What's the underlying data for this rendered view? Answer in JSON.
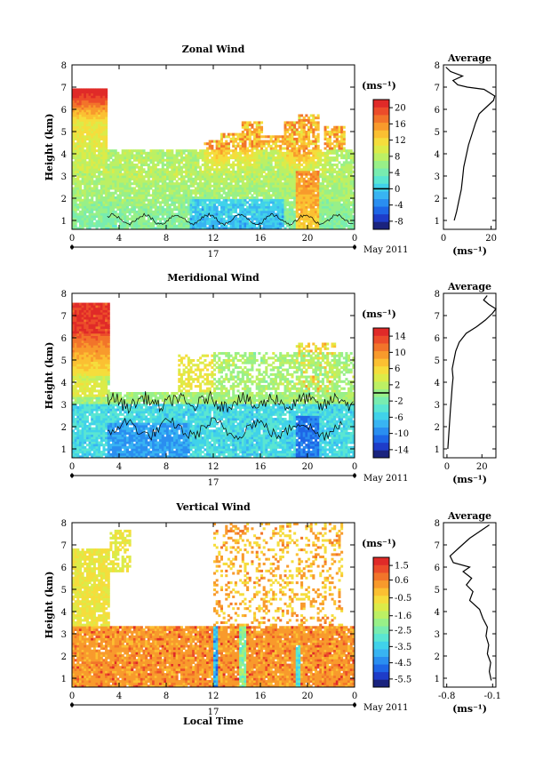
{
  "chart_data": [
    {
      "type": "heatmap",
      "title": "Zonal Wind",
      "ylabel": "Height (km)",
      "xlabel": "",
      "xticks": [
        "0",
        "4",
        "8",
        "12",
        "16",
        "20",
        "0"
      ],
      "xlim": [
        0,
        24
      ],
      "yticks": [
        "1",
        "2",
        "3",
        "4",
        "5",
        "6",
        "7",
        "8"
      ],
      "ylim": [
        0.6,
        8.0
      ],
      "date_day_label": "17",
      "date_month_label": "May 2011",
      "colorbar": {
        "unit": "(ms⁻¹)",
        "ticks": [
          "20",
          "16",
          "12",
          "8",
          "4",
          "0",
          "-4",
          "-8"
        ],
        "range": [
          -10,
          22
        ],
        "contour_level": 0,
        "colors": [
          "#1a237e",
          "#1e3cc8",
          "#1e66e6",
          "#2a8ef0",
          "#38b4f2",
          "#40d2ea",
          "#5ae6d2",
          "#78ecb0",
          "#98f088",
          "#bcf064",
          "#dceb48",
          "#f5dd3c",
          "#fbc032",
          "#f89a2c",
          "#f2742a",
          "#ec4c2a",
          "#e02a28"
        ]
      },
      "profile": {
        "title": "Average",
        "unit": "(ms⁻¹)",
        "xticks": [
          "0",
          "20"
        ],
        "xlim": [
          0,
          22
        ],
        "yticks": [
          "1",
          "2",
          "3",
          "4",
          "5",
          "6",
          "7",
          "8"
        ],
        "ylim": [
          0.6,
          8.0
        ],
        "points": [
          [
            4.5,
            1.0
          ],
          [
            5.5,
            1.4
          ],
          [
            6.5,
            1.9
          ],
          [
            7.5,
            2.4
          ],
          [
            8.0,
            2.9
          ],
          [
            8.5,
            3.4
          ],
          [
            9.5,
            3.9
          ],
          [
            10.5,
            4.4
          ],
          [
            12,
            4.9
          ],
          [
            13.5,
            5.4
          ],
          [
            15,
            5.8
          ],
          [
            18,
            6.1
          ],
          [
            21,
            6.4
          ],
          [
            21.5,
            6.6
          ],
          [
            17,
            6.9
          ],
          [
            10,
            7.0
          ],
          [
            6,
            7.1
          ],
          [
            4,
            7.3
          ],
          [
            8,
            7.5
          ],
          [
            3,
            7.7
          ],
          [
            1,
            7.9
          ]
        ]
      }
    },
    {
      "type": "heatmap",
      "title": "Meridional Wind",
      "ylabel": "Height (km)",
      "xlabel": "",
      "xticks": [
        "0",
        "4",
        "8",
        "12",
        "16",
        "20",
        "0"
      ],
      "xlim": [
        0,
        24
      ],
      "yticks": [
        "1",
        "2",
        "3",
        "4",
        "5",
        "6",
        "7",
        "8"
      ],
      "ylim": [
        0.6,
        8.0
      ],
      "date_day_label": "17",
      "date_month_label": "May 2011",
      "colorbar": {
        "unit": "(ms⁻¹)",
        "ticks": [
          "14",
          "10",
          "6",
          "2",
          "-2",
          "-6",
          "-10",
          "-14"
        ],
        "range": [
          -16,
          16
        ],
        "contour_level": 0,
        "colors": [
          "#1a237e",
          "#1e3cc8",
          "#1e66e6",
          "#2a8ef0",
          "#38b4f2",
          "#40d2ea",
          "#5ae6d2",
          "#78ecb0",
          "#98f088",
          "#bcf064",
          "#dceb48",
          "#f5dd3c",
          "#fbc032",
          "#f89a2c",
          "#f2742a",
          "#ec4c2a",
          "#e02a28"
        ]
      },
      "profile": {
        "title": "Average",
        "unit": "(ms⁻¹)",
        "xticks": [
          "0",
          "20"
        ],
        "xlim": [
          -2,
          28
        ],
        "yticks": [
          "1",
          "2",
          "3",
          "4",
          "5",
          "6",
          "7",
          "8"
        ],
        "ylim": [
          0.6,
          8.0
        ],
        "points": [
          [
            0.5,
            1.0
          ],
          [
            1,
            1.6
          ],
          [
            1.5,
            2.2
          ],
          [
            2,
            2.8
          ],
          [
            2.5,
            3.3
          ],
          [
            3,
            3.8
          ],
          [
            3.5,
            4.2
          ],
          [
            3,
            4.6
          ],
          [
            4,
            5.0
          ],
          [
            5,
            5.4
          ],
          [
            7,
            5.8
          ],
          [
            11,
            6.2
          ],
          [
            17,
            6.5
          ],
          [
            22,
            6.8
          ],
          [
            26,
            7.1
          ],
          [
            28,
            7.3
          ],
          [
            24,
            7.5
          ],
          [
            21,
            7.7
          ],
          [
            23,
            7.9
          ]
        ]
      }
    },
    {
      "type": "heatmap",
      "title": "Vertical Wind",
      "ylabel": "Height (km)",
      "xlabel": "Local Time",
      "xticks": [
        "0",
        "4",
        "8",
        "12",
        "16",
        "20",
        "0"
      ],
      "xlim": [
        0,
        24
      ],
      "yticks": [
        "1",
        "2",
        "3",
        "4",
        "5",
        "6",
        "7",
        "8"
      ],
      "ylim": [
        0.6,
        8.0
      ],
      "date_day_label": "17",
      "date_month_label": "May 2011",
      "colorbar": {
        "unit": "(ms⁻¹)",
        "ticks": [
          "1.5",
          "0.6",
          "-0.5",
          "-1.6",
          "-2.5",
          "-3.5",
          "-4.5",
          "-5.5"
        ],
        "range": [
          -6.0,
          2.0
        ],
        "colors": [
          "#1a237e",
          "#1e3cc8",
          "#1e66e6",
          "#2a8ef0",
          "#38b4f2",
          "#40d2ea",
          "#5ae6d2",
          "#78ecb0",
          "#98f088",
          "#bcf064",
          "#dceb48",
          "#f5dd3c",
          "#fbc032",
          "#f89a2c",
          "#f2742a",
          "#ec4c2a",
          "#e02a28"
        ]
      },
      "profile": {
        "title": "Average",
        "unit": "(ms⁻¹)",
        "xticks": [
          "-0.8",
          "-0.1"
        ],
        "xlim": [
          -0.85,
          -0.05
        ],
        "yticks": [
          "1",
          "2",
          "3",
          "4",
          "5",
          "6",
          "7",
          "8"
        ],
        "ylim": [
          0.6,
          8.0
        ],
        "points": [
          [
            -0.12,
            0.9
          ],
          [
            -0.15,
            1.3
          ],
          [
            -0.13,
            1.7
          ],
          [
            -0.18,
            2.1
          ],
          [
            -0.16,
            2.5
          ],
          [
            -0.2,
            2.9
          ],
          [
            -0.18,
            3.3
          ],
          [
            -0.25,
            3.7
          ],
          [
            -0.3,
            4.1
          ],
          [
            -0.45,
            4.5
          ],
          [
            -0.4,
            4.9
          ],
          [
            -0.5,
            5.2
          ],
          [
            -0.42,
            5.5
          ],
          [
            -0.55,
            5.8
          ],
          [
            -0.45,
            6.0
          ],
          [
            -0.7,
            6.2
          ],
          [
            -0.75,
            6.5
          ],
          [
            -0.6,
            6.9
          ],
          [
            -0.45,
            7.3
          ],
          [
            -0.3,
            7.6
          ],
          [
            -0.15,
            7.9
          ]
        ]
      }
    }
  ]
}
